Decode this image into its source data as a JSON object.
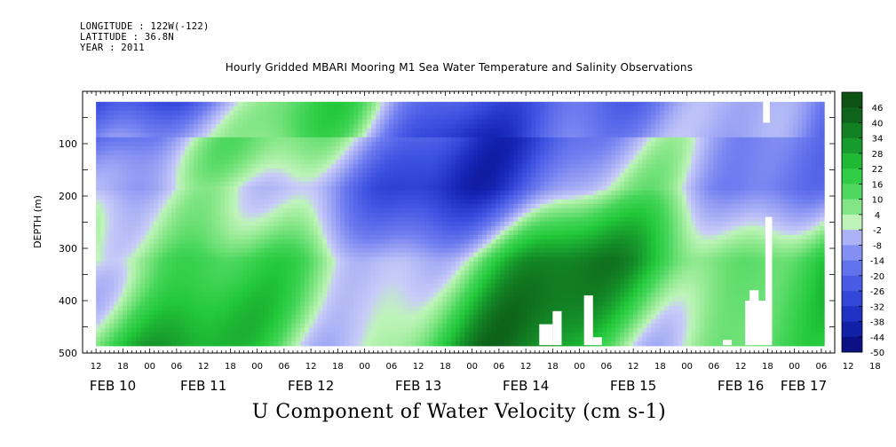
{
  "header": {
    "longitude": "LONGITUDE : 122W(-122)",
    "latitude": "LATITUDE : 36.8N",
    "year": "YEAR : 2011"
  },
  "title": "Hourly Gridded MBARI Mooring M1 Sea Water Temperature and Salinity Observations",
  "bottom_title": "U Component of Water Velocity (cm s-1)",
  "chart_data": {
    "type": "heatmap",
    "title": "Hourly Gridded MBARI Mooring M1 Sea Water Temperature and Salinity Observations",
    "variable": "U Component of Water Velocity (cm s-1)",
    "ylabel": "DEPTH (m)",
    "ylim": [
      500,
      0
    ],
    "y_inverted": true,
    "y_ticks": [
      100,
      200,
      300,
      400,
      500
    ],
    "x_hour_ticks": [
      "12",
      "18",
      "00",
      "06",
      "12",
      "18",
      "00",
      "06",
      "12",
      "18",
      "00",
      "06",
      "12",
      "18",
      "00",
      "06",
      "12",
      "18",
      "00",
      "06",
      "12",
      "18",
      "00",
      "06",
      "12",
      "18",
      "00",
      "06",
      "12",
      "18",
      "00",
      "06"
    ],
    "x_date_labels": [
      "FEB 10",
      "FEB 11",
      "FEB 12",
      "FEB 13",
      "FEB 14",
      "FEB 15",
      "FEB 16",
      "FEB 17"
    ],
    "x_start": "2011-02-10T09:00",
    "x_end": "2011-02-17T09:00",
    "data_start": "2011-02-10T12:00",
    "data_end": "2011-02-17T06:00",
    "data_depth_range": [
      20,
      485
    ],
    "colorbar_levels": [
      48,
      46,
      40,
      34,
      28,
      22,
      16,
      10,
      4,
      -2,
      -8,
      -14,
      -20,
      -26,
      -32,
      -38,
      -44,
      -50
    ],
    "colorbar_labels": [
      "46",
      "40",
      "34",
      "28",
      "22",
      "16",
      "10",
      "4",
      "-2",
      "-8",
      "-14",
      "-20",
      "-26",
      "-32",
      "-38",
      "-44",
      "-50"
    ],
    "colors": {
      "high": "#0b4d12",
      "mid_high": "#22c83a",
      "near_zero_pos": "#b9f2b0",
      "near_zero_neg": "#c7cbf5",
      "mid_low": "#6f7df0",
      "low": "#1526b8",
      "extreme_low": "#070a72"
    }
  }
}
